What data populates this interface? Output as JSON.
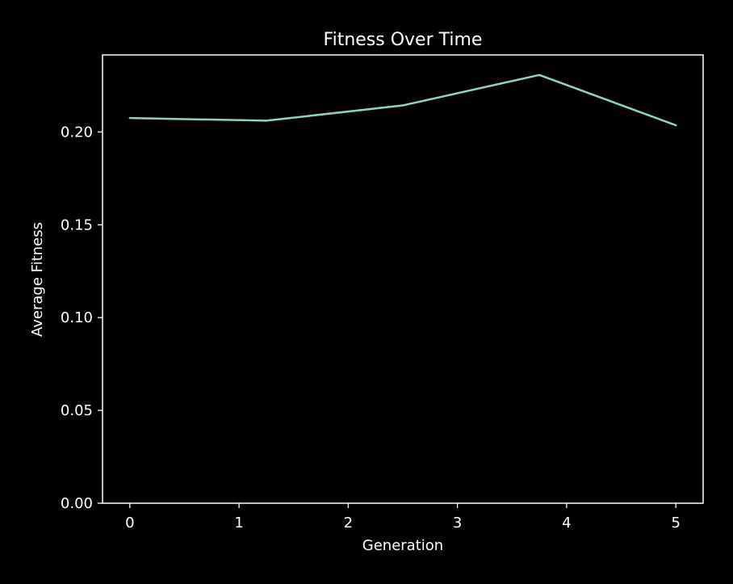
{
  "chart_data": {
    "type": "line",
    "title": "Fitness Over Time",
    "xlabel": "Generation",
    "ylabel": "Average Fitness",
    "xlim": [
      -0.25,
      5.25
    ],
    "ylim": [
      0.0,
      0.2415
    ],
    "xticks": [
      0,
      1,
      2,
      3,
      4,
      5
    ],
    "xtick_labels": [
      "0",
      "1",
      "2",
      "3",
      "4",
      "5"
    ],
    "yticks": [
      0.0,
      0.05,
      0.1,
      0.15,
      0.2
    ],
    "ytick_labels": [
      "0.00",
      "0.05",
      "0.10",
      "0.15",
      "0.20"
    ],
    "grid": false,
    "series": [
      {
        "x": [
          0,
          1.25,
          2.5,
          3.75,
          5
        ],
        "y": [
          0.2075,
          0.2061,
          0.2143,
          0.2307,
          0.2036
        ]
      }
    ]
  },
  "colors": {
    "background": "#000000",
    "foreground": "#ffffff",
    "line": "#8dd3c7"
  }
}
